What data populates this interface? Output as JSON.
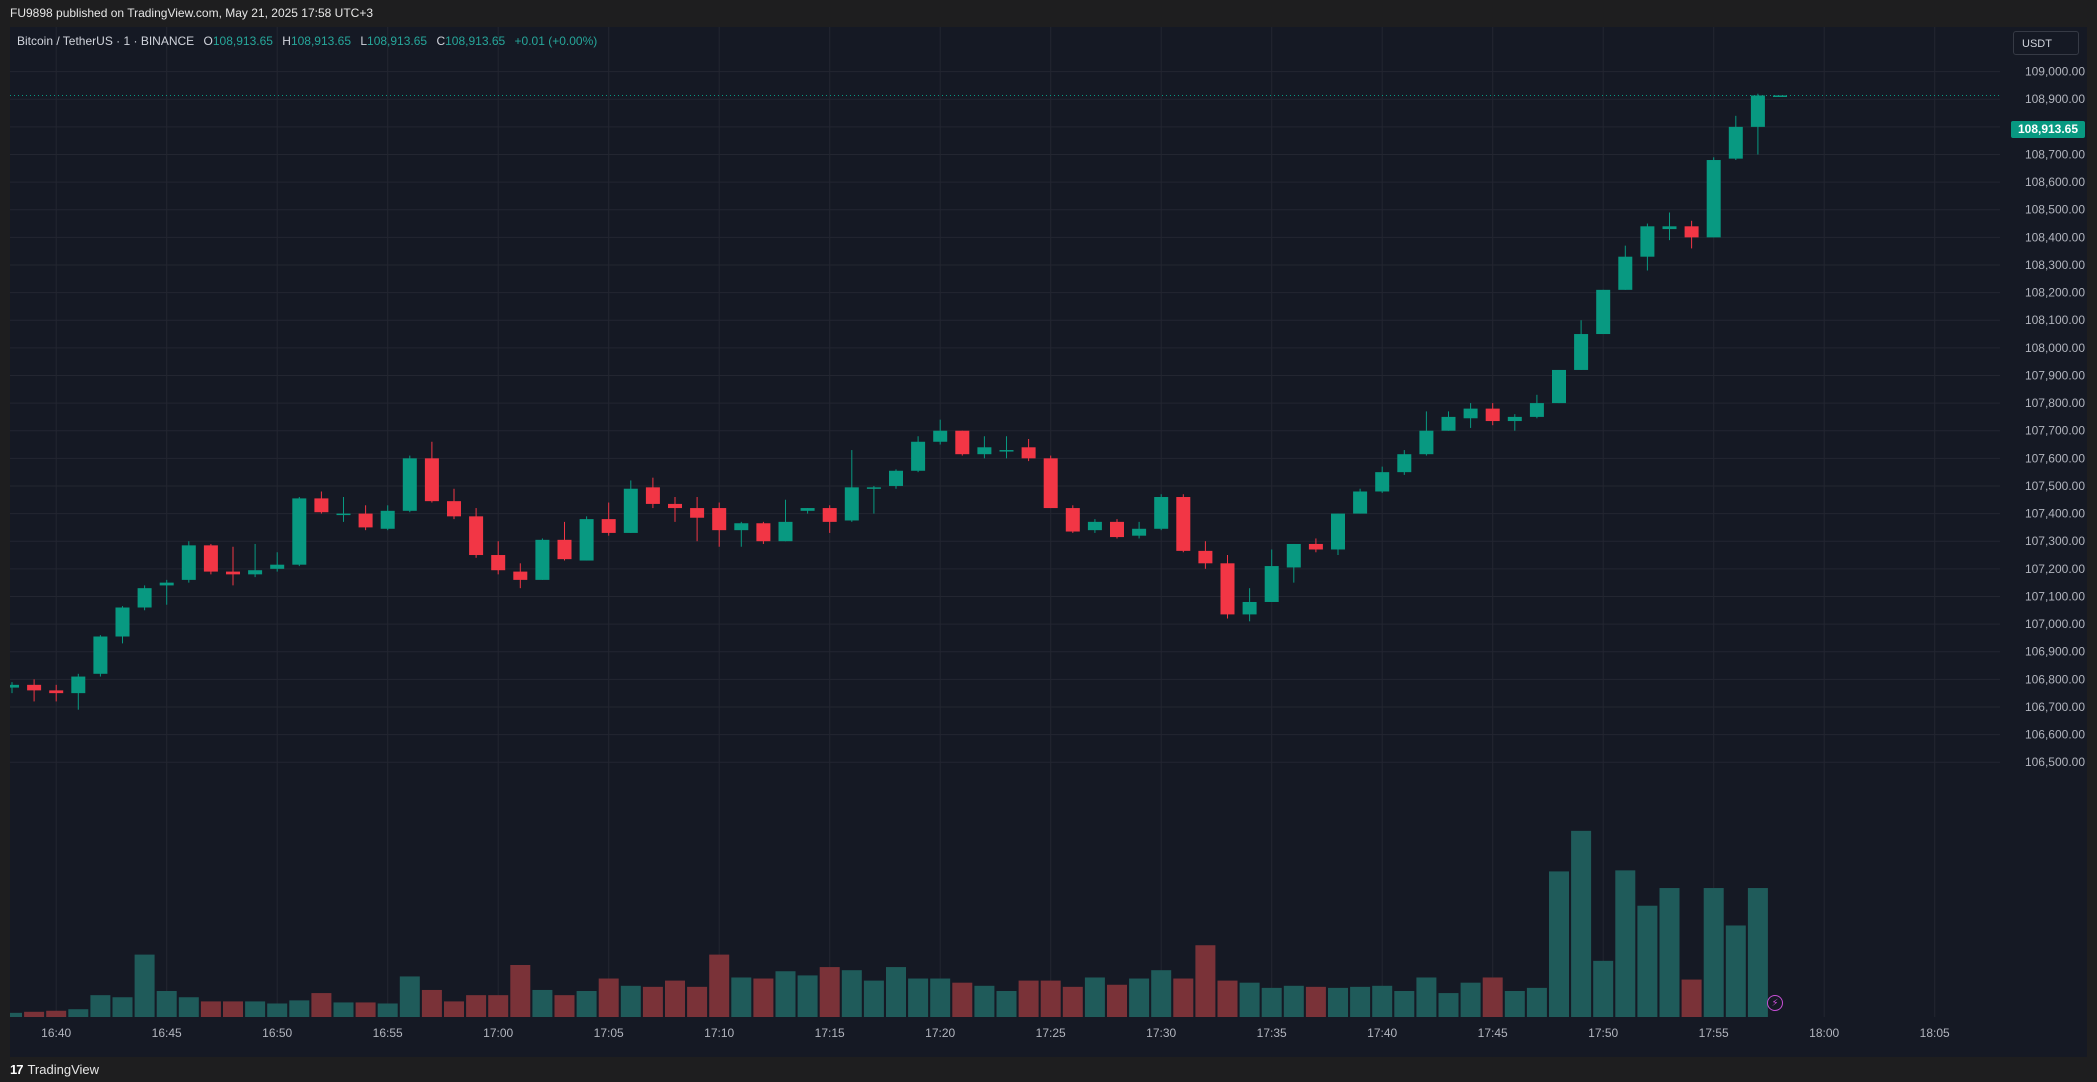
{
  "header": {
    "published_text": "FU9898 published on TradingView.com, May 21, 2025 17:58 UTC+3"
  },
  "legend": {
    "symbol": "Bitcoin / TetherUS · 1 · BINANCE",
    "o_label": "O",
    "o_value": "108,913.65",
    "h_label": "H",
    "h_value": "108,913.65",
    "l_label": "L",
    "l_value": "108,913.65",
    "c_label": "C",
    "c_value": "108,913.65",
    "change": "+0.01 (+0.00%)"
  },
  "price_axis": {
    "currency_button": "USDT",
    "last_price_tag": "108,913.65"
  },
  "footer": {
    "brand": "TradingView",
    "logo_mark": "17"
  },
  "icons": {
    "bolt": "lightning-icon",
    "logo": "tradingview-logo-icon"
  },
  "colors": {
    "up": "#089981",
    "down": "#f23645",
    "vol_up": "#1f5b5a",
    "vol_down": "#7a3238",
    "background": "#151924",
    "grid": "#232631",
    "text": "#b2b5be"
  },
  "chart_data": {
    "type": "candlestick",
    "title": "Bitcoin / TetherUS · 1 · BINANCE",
    "xlabel": "",
    "ylabel": "",
    "ylim": [
      106450,
      109100
    ],
    "y_ticks": [
      106500,
      106600,
      106700,
      106800,
      106900,
      107000,
      107100,
      107200,
      107300,
      107400,
      107500,
      107600,
      107700,
      107800,
      107900,
      108000,
      108100,
      108200,
      108300,
      108400,
      108500,
      108600,
      108700,
      108800,
      108900,
      109000
    ],
    "x_ticks": [
      "16:40",
      "16:45",
      "16:50",
      "16:55",
      "17:00",
      "17:05",
      "17:10",
      "17:15",
      "17:20",
      "17:25",
      "17:30",
      "17:35",
      "17:40",
      "17:45",
      "17:50",
      "17:55",
      "18:00",
      "18:05"
    ],
    "x_tick_index": [
      2,
      7,
      12,
      17,
      22,
      27,
      32,
      37,
      42,
      47,
      52,
      57,
      62,
      67,
      72,
      77,
      82,
      87
    ],
    "last_price": 108913.65,
    "candles": [
      {
        "t": "16:38",
        "o": 106770,
        "h": 106790,
        "l": 106750,
        "c": 106780
      },
      {
        "t": "16:39",
        "o": 106780,
        "h": 106800,
        "l": 106720,
        "c": 106760
      },
      {
        "t": "16:40",
        "o": 106760,
        "h": 106780,
        "l": 106720,
        "c": 106750
      },
      {
        "t": "16:41",
        "o": 106750,
        "h": 106820,
        "l": 106690,
        "c": 106810
      },
      {
        "t": "16:42",
        "o": 106820,
        "h": 106960,
        "l": 106810,
        "c": 106955
      },
      {
        "t": "16:43",
        "o": 106955,
        "h": 107065,
        "l": 106930,
        "c": 107060
      },
      {
        "t": "16:44",
        "o": 107060,
        "h": 107140,
        "l": 107050,
        "c": 107130
      },
      {
        "t": "16:45",
        "o": 107140,
        "h": 107160,
        "l": 107070,
        "c": 107150
      },
      {
        "t": "16:46",
        "o": 107160,
        "h": 107300,
        "l": 107150,
        "c": 107285
      },
      {
        "t": "16:47",
        "o": 107285,
        "h": 107290,
        "l": 107180,
        "c": 107190
      },
      {
        "t": "16:48",
        "o": 107190,
        "h": 107280,
        "l": 107140,
        "c": 107180
      },
      {
        "t": "16:49",
        "o": 107180,
        "h": 107290,
        "l": 107170,
        "c": 107195
      },
      {
        "t": "16:50",
        "o": 107200,
        "h": 107260,
        "l": 107190,
        "c": 107215
      },
      {
        "t": "16:51",
        "o": 107215,
        "h": 107460,
        "l": 107210,
        "c": 107455
      },
      {
        "t": "16:52",
        "o": 107455,
        "h": 107480,
        "l": 107400,
        "c": 107405
      },
      {
        "t": "16:53",
        "o": 107400,
        "h": 107460,
        "l": 107370,
        "c": 107400
      },
      {
        "t": "16:54",
        "o": 107400,
        "h": 107430,
        "l": 107340,
        "c": 107350
      },
      {
        "t": "16:55",
        "o": 107345,
        "h": 107430,
        "l": 107340,
        "c": 107410
      },
      {
        "t": "16:56",
        "o": 107410,
        "h": 107610,
        "l": 107405,
        "c": 107600
      },
      {
        "t": "16:57",
        "o": 107600,
        "h": 107660,
        "l": 107440,
        "c": 107445
      },
      {
        "t": "16:58",
        "o": 107445,
        "h": 107490,
        "l": 107380,
        "c": 107390
      },
      {
        "t": "16:59",
        "o": 107390,
        "h": 107420,
        "l": 107240,
        "c": 107250
      },
      {
        "t": "17:00",
        "o": 107250,
        "h": 107300,
        "l": 107180,
        "c": 107195
      },
      {
        "t": "17:01",
        "o": 107190,
        "h": 107220,
        "l": 107130,
        "c": 107160
      },
      {
        "t": "17:02",
        "o": 107160,
        "h": 107310,
        "l": 107160,
        "c": 107305
      },
      {
        "t": "17:03",
        "o": 107305,
        "h": 107370,
        "l": 107230,
        "c": 107235
      },
      {
        "t": "17:04",
        "o": 107230,
        "h": 107390,
        "l": 107230,
        "c": 107380
      },
      {
        "t": "17:05",
        "o": 107380,
        "h": 107440,
        "l": 107320,
        "c": 107330
      },
      {
        "t": "17:06",
        "o": 107330,
        "h": 107520,
        "l": 107330,
        "c": 107490
      },
      {
        "t": "17:07",
        "o": 107495,
        "h": 107530,
        "l": 107420,
        "c": 107435
      },
      {
        "t": "17:08",
        "o": 107435,
        "h": 107460,
        "l": 107370,
        "c": 107420
      },
      {
        "t": "17:09",
        "o": 107420,
        "h": 107460,
        "l": 107300,
        "c": 107385
      },
      {
        "t": "17:10",
        "o": 107420,
        "h": 107440,
        "l": 107280,
        "c": 107340
      },
      {
        "t": "17:11",
        "o": 107340,
        "h": 107370,
        "l": 107280,
        "c": 107365
      },
      {
        "t": "17:12",
        "o": 107365,
        "h": 107370,
        "l": 107290,
        "c": 107300
      },
      {
        "t": "17:13",
        "o": 107300,
        "h": 107450,
        "l": 107300,
        "c": 107370
      },
      {
        "t": "17:14",
        "o": 107410,
        "h": 107420,
        "l": 107400,
        "c": 107420
      },
      {
        "t": "17:15",
        "o": 107420,
        "h": 107430,
        "l": 107330,
        "c": 107370
      },
      {
        "t": "17:16",
        "o": 107375,
        "h": 107630,
        "l": 107370,
        "c": 107495
      },
      {
        "t": "17:17",
        "o": 107495,
        "h": 107500,
        "l": 107400,
        "c": 107495
      },
      {
        "t": "17:18",
        "o": 107500,
        "h": 107560,
        "l": 107490,
        "c": 107555
      },
      {
        "t": "17:19",
        "o": 107555,
        "h": 107680,
        "l": 107550,
        "c": 107660
      },
      {
        "t": "17:20",
        "o": 107660,
        "h": 107740,
        "l": 107650,
        "c": 107700
      },
      {
        "t": "17:21",
        "o": 107700,
        "h": 107700,
        "l": 107610,
        "c": 107615
      },
      {
        "t": "17:22",
        "o": 107615,
        "h": 107680,
        "l": 107600,
        "c": 107640
      },
      {
        "t": "17:23",
        "o": 107630,
        "h": 107680,
        "l": 107600,
        "c": 107630
      },
      {
        "t": "17:24",
        "o": 107640,
        "h": 107670,
        "l": 107590,
        "c": 107600
      },
      {
        "t": "17:25",
        "o": 107600,
        "h": 107610,
        "l": 107420,
        "c": 107420
      },
      {
        "t": "17:26",
        "o": 107420,
        "h": 107430,
        "l": 107330,
        "c": 107335
      },
      {
        "t": "17:27",
        "o": 107340,
        "h": 107380,
        "l": 107330,
        "c": 107370
      },
      {
        "t": "17:28",
        "o": 107370,
        "h": 107380,
        "l": 107310,
        "c": 107315
      },
      {
        "t": "17:29",
        "o": 107320,
        "h": 107370,
        "l": 107310,
        "c": 107345
      },
      {
        "t": "17:30",
        "o": 107345,
        "h": 107470,
        "l": 107340,
        "c": 107460
      },
      {
        "t": "17:31",
        "o": 107460,
        "h": 107470,
        "l": 107260,
        "c": 107265
      },
      {
        "t": "17:32",
        "o": 107265,
        "h": 107300,
        "l": 107200,
        "c": 107220
      },
      {
        "t": "17:33",
        "o": 107220,
        "h": 107250,
        "l": 107020,
        "c": 107035
      },
      {
        "t": "17:34",
        "o": 107035,
        "h": 107130,
        "l": 107010,
        "c": 107080
      },
      {
        "t": "17:35",
        "o": 107080,
        "h": 107270,
        "l": 107080,
        "c": 107210
      },
      {
        "t": "17:36",
        "o": 107205,
        "h": 107290,
        "l": 107150,
        "c": 107290
      },
      {
        "t": "17:37",
        "o": 107290,
        "h": 107310,
        "l": 107260,
        "c": 107270
      },
      {
        "t": "17:38",
        "o": 107270,
        "h": 107400,
        "l": 107250,
        "c": 107400
      },
      {
        "t": "17:39",
        "o": 107400,
        "h": 107490,
        "l": 107400,
        "c": 107480
      },
      {
        "t": "17:40",
        "o": 107480,
        "h": 107570,
        "l": 107475,
        "c": 107550
      },
      {
        "t": "17:41",
        "o": 107550,
        "h": 107630,
        "l": 107540,
        "c": 107615
      },
      {
        "t": "17:42",
        "o": 107615,
        "h": 107770,
        "l": 107610,
        "c": 107700
      },
      {
        "t": "17:43",
        "o": 107700,
        "h": 107770,
        "l": 107700,
        "c": 107750
      },
      {
        "t": "17:44",
        "o": 107745,
        "h": 107800,
        "l": 107710,
        "c": 107780
      },
      {
        "t": "17:45",
        "o": 107780,
        "h": 107800,
        "l": 107720,
        "c": 107735
      },
      {
        "t": "17:46",
        "o": 107735,
        "h": 107760,
        "l": 107700,
        "c": 107750
      },
      {
        "t": "17:47",
        "o": 107750,
        "h": 107830,
        "l": 107745,
        "c": 107800
      },
      {
        "t": "17:48",
        "o": 107800,
        "h": 107920,
        "l": 107800,
        "c": 107920
      },
      {
        "t": "17:49",
        "o": 107920,
        "h": 108100,
        "l": 107920,
        "c": 108050
      },
      {
        "t": "17:50",
        "o": 108050,
        "h": 108210,
        "l": 108050,
        "c": 108210
      },
      {
        "t": "17:51",
        "o": 108210,
        "h": 108370,
        "l": 108210,
        "c": 108330
      },
      {
        "t": "17:52",
        "o": 108330,
        "h": 108450,
        "l": 108280,
        "c": 108440
      },
      {
        "t": "17:53",
        "o": 108430,
        "h": 108490,
        "l": 108390,
        "c": 108440
      },
      {
        "t": "17:54",
        "o": 108440,
        "h": 108460,
        "l": 108360,
        "c": 108400
      },
      {
        "t": "17:55",
        "o": 108400,
        "h": 108690,
        "l": 108400,
        "c": 108680
      },
      {
        "t": "17:56",
        "o": 108685,
        "h": 108840,
        "l": 108680,
        "c": 108800
      },
      {
        "t": "17:57",
        "o": 108800,
        "h": 108920,
        "l": 108700,
        "c": 108913.65
      },
      {
        "t": "17:58",
        "o": 108913.65,
        "h": 108913.65,
        "l": 108913.65,
        "c": 108913.65
      }
    ],
    "volume": [
      8,
      10,
      12,
      15,
      42,
      38,
      120,
      50,
      38,
      30,
      30,
      30,
      26,
      32,
      46,
      28,
      28,
      26,
      78,
      52,
      30,
      42,
      42,
      100,
      52,
      42,
      50,
      74,
      60,
      58,
      70,
      58,
      120,
      76,
      74,
      88,
      80,
      96,
      90,
      70,
      96,
      74,
      74,
      66,
      60,
      50,
      70,
      70,
      58,
      76,
      62,
      74,
      90,
      74,
      138,
      70,
      66,
      56,
      60,
      58,
      56,
      58,
      60,
      50,
      76,
      46,
      66,
      76,
      50,
      56,
      280,
      358,
      108,
      282,
      214,
      248,
      72,
      248,
      176,
      248,
      0
    ]
  }
}
